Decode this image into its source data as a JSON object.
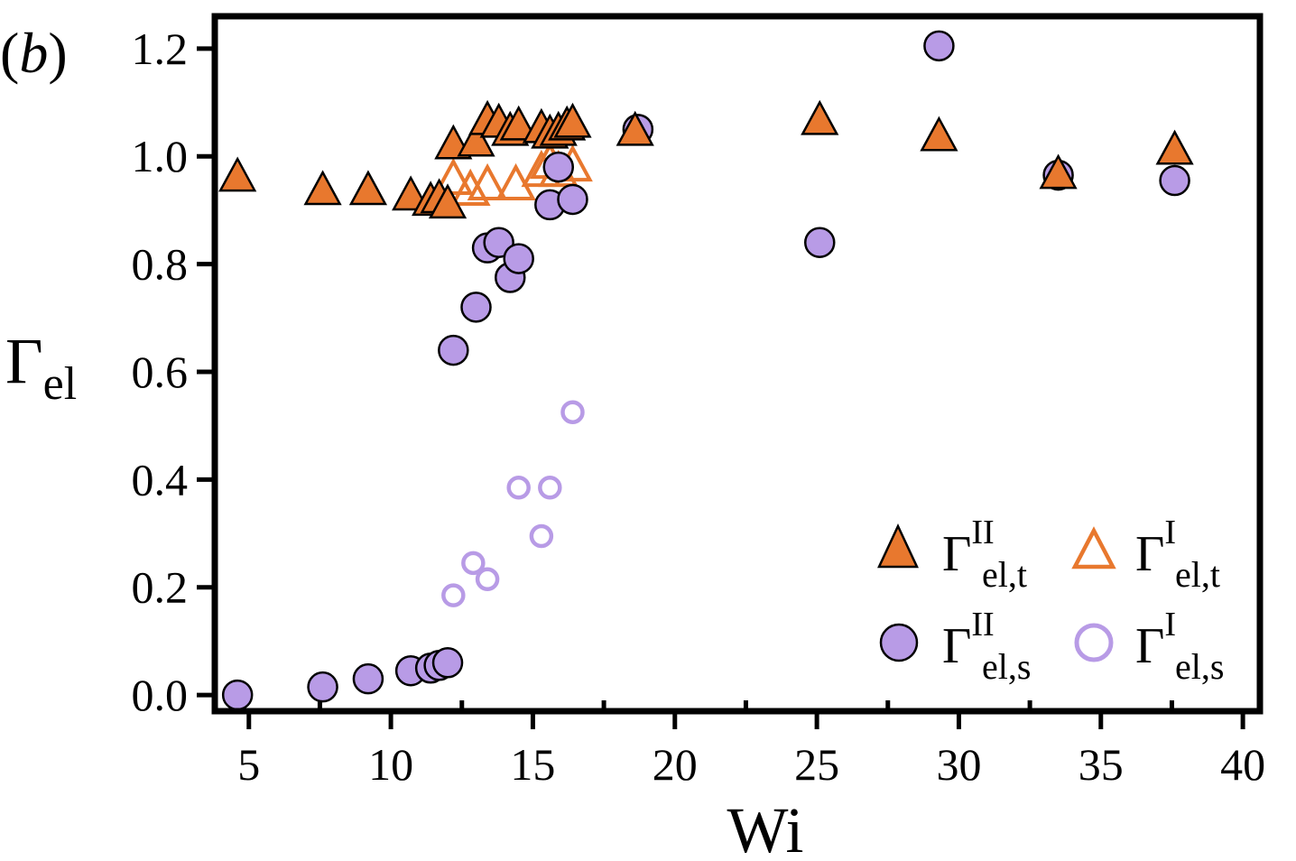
{
  "chart_data": {
    "type": "scatter",
    "panel_label": {
      "open": "(",
      "letter": "b",
      "close": ")"
    },
    "xlabel": "Wi",
    "ylabel": {
      "symbol": "Γ",
      "sub": "el"
    },
    "xlim": [
      3.8,
      40.6
    ],
    "ylim": [
      -0.03,
      1.26
    ],
    "xticks": [
      5,
      10,
      15,
      20,
      25,
      30,
      35,
      40
    ],
    "xticks_minor": [
      7.5,
      12.5,
      17.5,
      22.5,
      27.5,
      32.5,
      37.5
    ],
    "yticks": [
      0.0,
      0.2,
      0.4,
      0.6,
      0.8,
      1.0,
      1.2
    ],
    "ytick_labels": [
      "0.0",
      "0.2",
      "0.4",
      "0.6",
      "0.8",
      "1.0",
      "1.2"
    ],
    "grid": false,
    "legend_position": "bottom-right",
    "colors": {
      "orange": "#e8782e",
      "purple": "#b89be6",
      "purple_open": "#b89be6",
      "edge": "#000000"
    },
    "series": [
      {
        "name": "el,t II",
        "label": {
          "symbol": "Γ",
          "sup": "II",
          "sub": "el,t"
        },
        "marker": "triangle",
        "filled": true,
        "x": [
          4.6,
          7.6,
          9.2,
          10.7,
          11.4,
          11.7,
          12.0,
          12.2,
          13.0,
          13.4,
          13.8,
          14.2,
          14.5,
          15.3,
          15.6,
          15.9,
          16.2,
          16.4,
          18.6,
          25.1,
          29.3,
          33.5,
          37.6
        ],
        "y": [
          0.96,
          0.935,
          0.935,
          0.925,
          0.915,
          0.92,
          0.91,
          1.02,
          1.025,
          1.065,
          1.06,
          1.045,
          1.055,
          1.05,
          1.04,
          1.045,
          1.055,
          1.06,
          1.045,
          1.065,
          1.035,
          0.965,
          1.01
        ]
      },
      {
        "name": "el,t I",
        "label": {
          "symbol": "Γ",
          "sup": "I",
          "sub": "el,t"
        },
        "marker": "triangle",
        "filled": false,
        "x": [
          12.2,
          12.8,
          13.4,
          14.4,
          15.3,
          15.6,
          15.9,
          16.4
        ],
        "y": [
          0.955,
          0.935,
          0.945,
          0.945,
          0.97,
          0.985,
          0.97,
          0.98
        ]
      },
      {
        "name": "el,s II",
        "label": {
          "symbol": "Γ",
          "sup": "II",
          "sub": "el,s"
        },
        "marker": "circle",
        "filled": true,
        "x": [
          4.6,
          7.6,
          9.2,
          10.7,
          11.4,
          11.7,
          12.0,
          12.2,
          13.0,
          13.4,
          13.8,
          14.2,
          14.5,
          15.6,
          15.9,
          16.4,
          18.7,
          25.1,
          29.3,
          33.5,
          37.6
        ],
        "y": [
          0.0,
          0.015,
          0.03,
          0.045,
          0.05,
          0.055,
          0.06,
          0.64,
          0.72,
          0.83,
          0.84,
          0.775,
          0.81,
          0.91,
          0.98,
          0.92,
          1.05,
          0.84,
          1.205,
          0.965,
          0.955
        ]
      },
      {
        "name": "el,s I",
        "label": {
          "symbol": "Γ",
          "sup": "I",
          "sub": "el,s"
        },
        "marker": "circle",
        "filled": false,
        "x": [
          12.2,
          12.9,
          13.4,
          14.5,
          15.3,
          15.6,
          16.4
        ],
        "y": [
          0.185,
          0.245,
          0.215,
          0.385,
          0.295,
          0.385,
          0.525
        ]
      }
    ]
  }
}
